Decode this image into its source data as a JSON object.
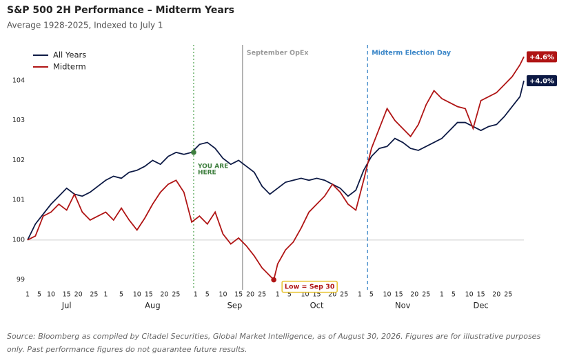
{
  "chart_data": {
    "type": "line",
    "title": "S&P 500 2H Performance – Midterm Years",
    "subtitle": "Average 1928-2025, Indexed to July 1",
    "source": "Source: Bloomberg as compiled by Citadel Securities, Global Market Intelligence, as of August 30, 2026. Figures are for illustrative purposes only. Past performance figures do not guarantee future results.",
    "xlim": [
      0,
      127
    ],
    "ylim": [
      98.75,
      104.9
    ],
    "yticks": [
      99,
      100,
      101,
      102,
      103,
      104
    ],
    "baseline": 100,
    "legend": "top-left",
    "xticks": [
      {
        "value": 0,
        "label": "1"
      },
      {
        "value": 3,
        "label": "5"
      },
      {
        "value": 6,
        "label": "10"
      },
      {
        "value": 10,
        "label": "15"
      },
      {
        "value": 13,
        "label": "20"
      },
      {
        "value": 17,
        "label": "25"
      },
      {
        "value": 20,
        "label": "1"
      },
      {
        "value": 24,
        "label": "5"
      },
      {
        "value": 28,
        "label": "10"
      },
      {
        "value": 31,
        "label": "15"
      },
      {
        "value": 35,
        "label": "20"
      },
      {
        "value": 38,
        "label": "25"
      },
      {
        "value": 43,
        "label": "1"
      },
      {
        "value": 46,
        "label": "5"
      },
      {
        "value": 50,
        "label": "10"
      },
      {
        "value": 54,
        "label": "15"
      },
      {
        "value": 57,
        "label": "20"
      },
      {
        "value": 60,
        "label": "25"
      },
      {
        "value": 64,
        "label": "1"
      },
      {
        "value": 67,
        "label": "5"
      },
      {
        "value": 71,
        "label": "10"
      },
      {
        "value": 74,
        "label": "15"
      },
      {
        "value": 78,
        "label": "20"
      },
      {
        "value": 81,
        "label": "25"
      },
      {
        "value": 85,
        "label": "1"
      },
      {
        "value": 88,
        "label": "5"
      },
      {
        "value": 92,
        "label": "10"
      },
      {
        "value": 95,
        "label": "15"
      },
      {
        "value": 99,
        "label": "20"
      },
      {
        "value": 102,
        "label": "25"
      },
      {
        "value": 106,
        "label": "1"
      },
      {
        "value": 109,
        "label": "5"
      },
      {
        "value": 113,
        "label": "10"
      },
      {
        "value": 116,
        "label": "15"
      },
      {
        "value": 120,
        "label": "20"
      },
      {
        "value": 123,
        "label": "25"
      }
    ],
    "month_labels": [
      {
        "value": 10,
        "label": "Jul"
      },
      {
        "value": 32,
        "label": "Aug"
      },
      {
        "value": 53,
        "label": "Sep"
      },
      {
        "value": 74,
        "label": "Oct"
      },
      {
        "value": 96,
        "label": "Nov"
      },
      {
        "value": 116,
        "label": "Dec"
      }
    ],
    "vlines": [
      {
        "x": 42.5,
        "color": "#5aa85a",
        "style": "dotted",
        "label_lines": [
          "YOU ARE",
          "HERE"
        ]
      },
      {
        "x": 55,
        "color": "#999999",
        "style": "solid",
        "label": "September OpEx"
      },
      {
        "x": 87,
        "color": "#3a86c8",
        "style": "dashed",
        "label": "Midterm Election Day"
      }
    ],
    "markers": [
      {
        "x": 42.5,
        "y": 102.2,
        "color": "#3f7f3f"
      },
      {
        "x": 63,
        "y": 99.0,
        "color": "#b01515",
        "label": "Low = Sep 30"
      }
    ],
    "series": [
      {
        "name": "All Years",
        "color": "#0d1a45",
        "end_label": "+4.0%",
        "x": [
          0,
          2,
          4,
          6,
          8,
          10,
          12,
          14,
          16,
          18,
          20,
          22,
          24,
          26,
          28,
          30,
          32,
          34,
          36,
          38,
          40,
          42,
          44,
          46,
          48,
          50,
          52,
          54,
          56,
          58,
          60,
          62,
          64,
          66,
          68,
          70,
          72,
          74,
          76,
          78,
          80,
          82,
          84,
          86,
          88,
          90,
          92,
          94,
          96,
          98,
          100,
          102,
          104,
          106,
          108,
          110,
          112,
          114,
          116,
          118,
          120,
          122,
          124,
          126,
          127
        ],
        "values": [
          100.0,
          100.4,
          100.65,
          100.9,
          101.1,
          101.3,
          101.15,
          101.1,
          101.2,
          101.35,
          101.5,
          101.6,
          101.55,
          101.7,
          101.75,
          101.85,
          102.0,
          101.9,
          102.1,
          102.2,
          102.15,
          102.2,
          102.4,
          102.45,
          102.3,
          102.05,
          101.9,
          102.0,
          101.85,
          101.7,
          101.35,
          101.15,
          101.3,
          101.45,
          101.5,
          101.55,
          101.5,
          101.55,
          101.5,
          101.4,
          101.3,
          101.1,
          101.25,
          101.75,
          102.1,
          102.3,
          102.35,
          102.55,
          102.45,
          102.3,
          102.25,
          102.35,
          102.45,
          102.55,
          102.75,
          102.95,
          102.95,
          102.85,
          102.75,
          102.85,
          102.9,
          103.1,
          103.35,
          103.6,
          104.0
        ]
      },
      {
        "name": "Midterm",
        "color": "#b01515",
        "end_label": "+4.6%",
        "x": [
          0,
          2,
          4,
          6,
          8,
          10,
          12,
          14,
          16,
          18,
          20,
          22,
          24,
          26,
          28,
          30,
          32,
          34,
          36,
          38,
          40,
          42,
          44,
          46,
          48,
          50,
          52,
          54,
          56,
          58,
          60,
          62,
          63,
          64,
          66,
          68,
          70,
          72,
          74,
          76,
          78,
          80,
          82,
          84,
          86,
          88,
          90,
          92,
          94,
          96,
          98,
          100,
          102,
          104,
          106,
          108,
          110,
          112,
          114,
          116,
          118,
          120,
          122,
          124,
          126,
          127
        ],
        "values": [
          100.0,
          100.1,
          100.6,
          100.7,
          100.9,
          100.75,
          101.15,
          100.7,
          100.5,
          100.6,
          100.7,
          100.5,
          100.8,
          100.5,
          100.25,
          100.55,
          100.9,
          101.2,
          101.4,
          101.5,
          101.2,
          100.45,
          100.6,
          100.4,
          100.7,
          100.15,
          99.9,
          100.05,
          99.85,
          99.6,
          99.3,
          99.1,
          99.0,
          99.4,
          99.75,
          99.95,
          100.3,
          100.7,
          100.9,
          101.1,
          101.4,
          101.2,
          100.9,
          100.75,
          101.5,
          102.3,
          102.8,
          103.3,
          103.0,
          102.8,
          102.6,
          102.9,
          103.4,
          103.75,
          103.55,
          103.45,
          103.35,
          103.3,
          102.8,
          103.5,
          103.6,
          103.7,
          103.9,
          104.1,
          104.4,
          104.6
        ]
      }
    ]
  }
}
